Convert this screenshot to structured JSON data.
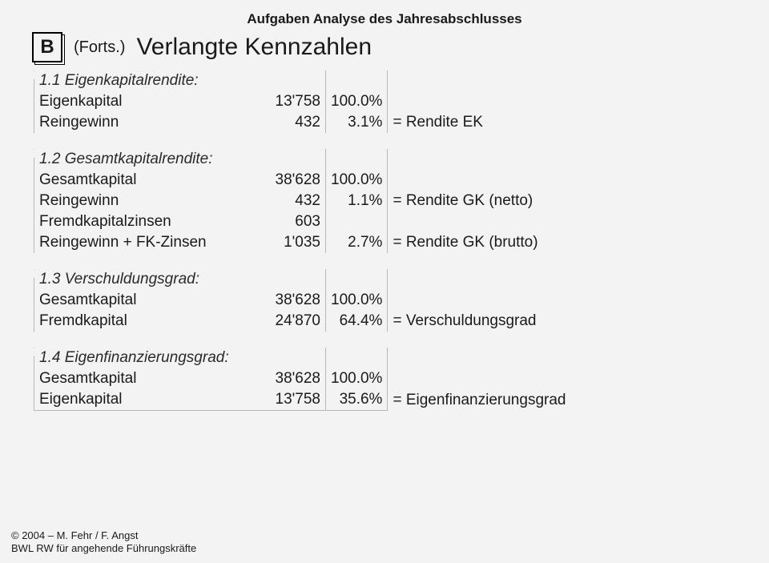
{
  "supertitle": "Aufgaben Analyse des Jahresabschlusses",
  "badge": "B",
  "forts": "(Forts.)",
  "main_title": "Verlangte Kennzahlen",
  "sections": [
    {
      "head": "1.1 Eigenkapitalrendite:",
      "rows": [
        {
          "label": "Eigenkapital",
          "val": "13'758",
          "pct": "100.0%",
          "note": ""
        },
        {
          "label": "Reingewinn",
          "val": "432",
          "pct": "3.1%",
          "note": "= Rendite EK"
        }
      ]
    },
    {
      "head": "1.2 Gesamtkapitalrendite:",
      "rows": [
        {
          "label": "Gesamtkapital",
          "val": "38'628",
          "pct": "100.0%",
          "note": ""
        },
        {
          "label": "Reingewinn",
          "val": "432",
          "pct": "1.1%",
          "note": "= Rendite GK (netto)"
        },
        {
          "label": "Fremdkapitalzinsen",
          "val": "603",
          "pct": "",
          "note": ""
        },
        {
          "label": "Reingewinn + FK-Zinsen",
          "val": "1'035",
          "pct": "2.7%",
          "note": "= Rendite GK (brutto)"
        }
      ]
    },
    {
      "head": "1.3 Verschuldungsgrad:",
      "rows": [
        {
          "label": "Gesamtkapital",
          "val": "38'628",
          "pct": "100.0%",
          "note": ""
        },
        {
          "label": "Fremdkapital",
          "val": "24'870",
          "pct": "64.4%",
          "note": "= Verschuldungsgrad"
        }
      ]
    },
    {
      "head": "1.4 Eigenfinanzierungsgrad:",
      "rows": [
        {
          "label": "Gesamtkapital",
          "val": "38'628",
          "pct": "100.0%",
          "note": ""
        },
        {
          "label": "Eigenkapital",
          "val": "13'758",
          "pct": "35.6%",
          "note": "= Eigenfinanzierungsgrad"
        }
      ]
    }
  ],
  "footer_line1": "© 2004 – M. Fehr / F. Angst",
  "footer_line2": "BWL RW für angehende Führungskräfte"
}
